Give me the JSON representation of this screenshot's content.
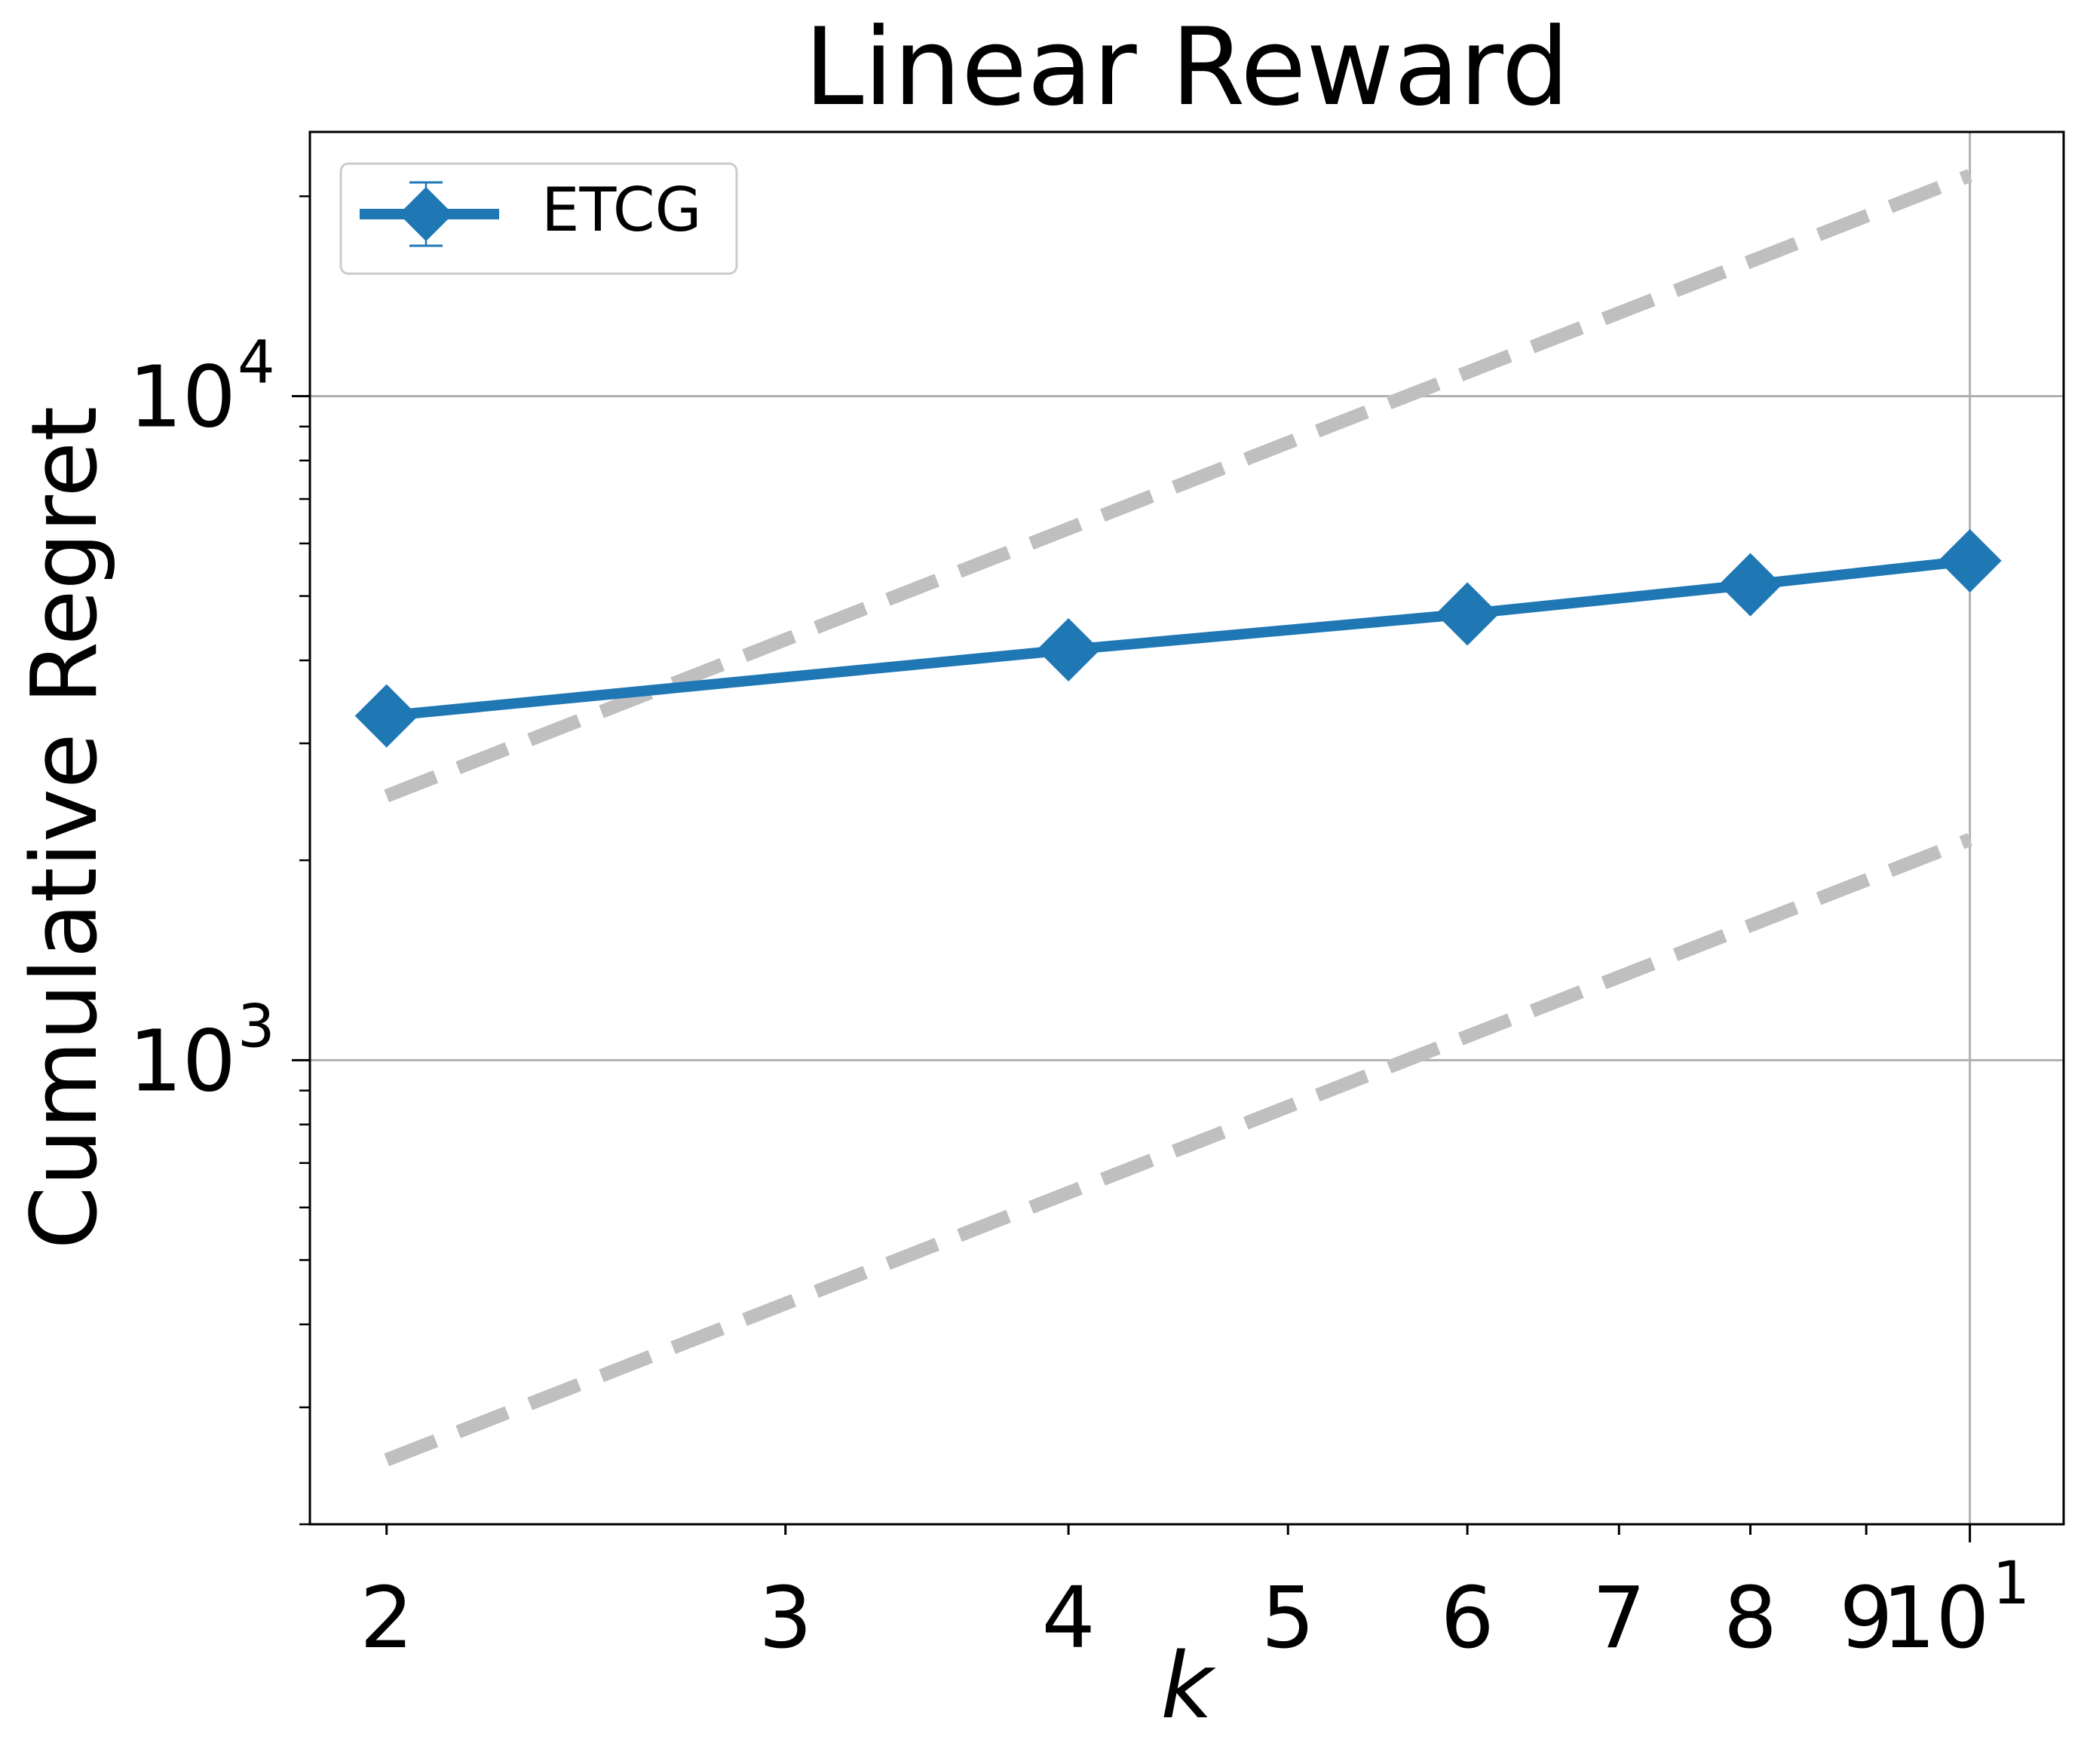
{
  "chart_data": {
    "type": "line",
    "title": "Linear Reward",
    "xlabel": "k",
    "ylabel": "Cumulative Regret",
    "xscale": "log",
    "yscale": "log",
    "xlim": [
      1.85,
      11.0
    ],
    "ylim": [
      200,
      25000
    ],
    "grid": "major ticks only (x at 10, y at 1000 and 10000)",
    "legend_placement": "top-left",
    "x_ticks": [
      {
        "value": 2,
        "label": "2"
      },
      {
        "value": 3,
        "label": "3"
      },
      {
        "value": 4,
        "label": "4"
      },
      {
        "value": 5,
        "label": "5"
      },
      {
        "value": 6,
        "label": "6"
      },
      {
        "value": 7,
        "label": "7"
      },
      {
        "value": 8,
        "label": "8"
      },
      {
        "value": 9,
        "label": "9"
      },
      {
        "value": 10,
        "label": "10",
        "exponent": "1"
      }
    ],
    "y_ticks": [
      {
        "value": 1000,
        "label": "10",
        "exponent": "3"
      },
      {
        "value": 10000,
        "label": "10",
        "exponent": "4"
      }
    ],
    "series": [
      {
        "name": "ETCG",
        "color": "#1f77b4",
        "marker": "diamond",
        "x": [
          2,
          4,
          6,
          8,
          10
        ],
        "y": [
          3300,
          4150,
          4700,
          5200,
          5650
        ]
      }
    ],
    "reference_lines": [
      {
        "color": "#bfbfbf",
        "style": "dashed",
        "x": [
          2,
          10
        ],
        "y": [
          2500,
          21500
        ]
      },
      {
        "color": "#bfbfbf",
        "style": "dashed",
        "x": [
          2,
          10
        ],
        "y": [
          250,
          2150
        ]
      }
    ]
  }
}
